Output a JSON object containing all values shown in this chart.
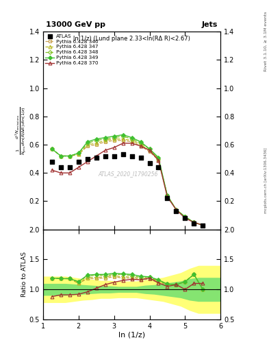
{
  "title_left": "13000 GeV pp",
  "title_right": "Jets",
  "plot_title": "ln(1/z) (Lund plane 2.33<ln(RΔ R)<2.67)",
  "ylabel_main": "$\\frac{1}{N_{\\mathrm{jets}}}\\frac{d^2 N_{\\mathrm{emissions}}}{d\\ln(R/\\Delta R)\\, d\\ln(1/z)}$",
  "ylabel_ratio": "Ratio to ATLAS",
  "xlabel": "ln (1/z)",
  "right_label_top": "Rivet 3.1.10, ≥ 3.1M events",
  "right_label_bottom": "mcplots.cern.ch [arXiv:1306.3436]",
  "watermark": "ATLAS_2020_I1790256",
  "x_atlas": [
    1.25,
    1.5,
    1.75,
    2.0,
    2.25,
    2.5,
    2.75,
    3.0,
    3.25,
    3.5,
    3.75,
    4.0,
    4.25,
    4.5,
    4.75,
    5.0,
    5.25,
    5.5
  ],
  "y_atlas": [
    0.48,
    0.44,
    0.44,
    0.48,
    0.5,
    0.51,
    0.52,
    0.52,
    0.53,
    0.52,
    0.51,
    0.47,
    0.44,
    0.22,
    0.13,
    0.08,
    0.04,
    0.03
  ],
  "x_py346": [
    1.25,
    1.5,
    1.75,
    2.0,
    2.25,
    2.5,
    2.75,
    3.0,
    3.25,
    3.5,
    3.75,
    4.0,
    4.25,
    4.5,
    4.75,
    5.0,
    5.25,
    5.5
  ],
  "y_py346": [
    0.57,
    0.52,
    0.52,
    0.53,
    0.59,
    0.6,
    0.62,
    0.63,
    0.63,
    0.62,
    0.59,
    0.55,
    0.49,
    0.24,
    0.14,
    0.09,
    0.05,
    0.03
  ],
  "x_py347": [
    1.25,
    1.5,
    1.75,
    2.0,
    2.25,
    2.5,
    2.75,
    3.0,
    3.25,
    3.5,
    3.75,
    4.0,
    4.25,
    4.5,
    4.75,
    5.0,
    5.25,
    5.5
  ],
  "y_py347": [
    0.57,
    0.52,
    0.52,
    0.53,
    0.6,
    0.61,
    0.63,
    0.64,
    0.64,
    0.63,
    0.6,
    0.56,
    0.5,
    0.24,
    0.14,
    0.09,
    0.05,
    0.03
  ],
  "x_py348": [
    1.25,
    1.5,
    1.75,
    2.0,
    2.25,
    2.5,
    2.75,
    3.0,
    3.25,
    3.5,
    3.75,
    4.0,
    4.25,
    4.5,
    4.75,
    5.0,
    5.25,
    5.5
  ],
  "y_py348": [
    0.57,
    0.52,
    0.52,
    0.54,
    0.61,
    0.63,
    0.64,
    0.65,
    0.66,
    0.64,
    0.61,
    0.57,
    0.5,
    0.24,
    0.14,
    0.09,
    0.05,
    0.03
  ],
  "x_py349": [
    1.25,
    1.5,
    1.75,
    2.0,
    2.25,
    2.5,
    2.75,
    3.0,
    3.25,
    3.5,
    3.75,
    4.0,
    4.25,
    4.5,
    4.75,
    5.0,
    5.25,
    5.5
  ],
  "y_py349": [
    0.57,
    0.52,
    0.52,
    0.54,
    0.62,
    0.64,
    0.65,
    0.66,
    0.67,
    0.65,
    0.62,
    0.57,
    0.51,
    0.24,
    0.14,
    0.09,
    0.05,
    0.03
  ],
  "x_py370": [
    1.25,
    1.5,
    1.75,
    2.0,
    2.25,
    2.5,
    2.75,
    3.0,
    3.25,
    3.5,
    3.75,
    4.0,
    4.25,
    4.5,
    4.75,
    5.0,
    5.25,
    5.5
  ],
  "y_py370": [
    0.42,
    0.4,
    0.4,
    0.44,
    0.48,
    0.52,
    0.56,
    0.58,
    0.61,
    0.61,
    0.59,
    0.56,
    0.49,
    0.23,
    0.14,
    0.08,
    0.05,
    0.03
  ],
  "ratio_346": [
    1.19,
    1.18,
    1.18,
    1.1,
    1.18,
    1.18,
    1.19,
    1.21,
    1.19,
    1.19,
    1.16,
    1.17,
    1.11,
    1.09,
    1.08,
    1.13,
    1.25,
    1.0
  ],
  "ratio_347": [
    1.19,
    1.18,
    1.18,
    1.1,
    1.2,
    1.2,
    1.21,
    1.23,
    1.21,
    1.21,
    1.18,
    1.19,
    1.14,
    1.09,
    1.08,
    1.13,
    1.25,
    1.0
  ],
  "ratio_348": [
    1.19,
    1.18,
    1.18,
    1.13,
    1.22,
    1.24,
    1.23,
    1.25,
    1.25,
    1.23,
    1.2,
    1.21,
    1.14,
    1.09,
    1.08,
    1.13,
    1.25,
    1.0
  ],
  "ratio_349": [
    1.19,
    1.18,
    1.18,
    1.13,
    1.24,
    1.25,
    1.25,
    1.27,
    1.26,
    1.25,
    1.22,
    1.21,
    1.16,
    1.09,
    1.08,
    1.13,
    1.25,
    1.0
  ],
  "ratio_370": [
    0.88,
    0.91,
    0.91,
    0.92,
    0.96,
    1.02,
    1.08,
    1.12,
    1.15,
    1.17,
    1.16,
    1.19,
    1.11,
    1.05,
    1.08,
    1.0,
    1.1,
    1.1
  ],
  "band_green_lo": [
    0.9,
    0.9,
    0.9,
    0.91,
    0.92,
    0.93,
    0.94,
    0.94,
    0.95,
    0.95,
    0.95,
    0.93,
    0.92,
    0.9,
    0.88,
    0.86,
    0.82,
    0.8
  ],
  "band_green_hi": [
    1.1,
    1.1,
    1.1,
    1.09,
    1.08,
    1.07,
    1.06,
    1.06,
    1.05,
    1.05,
    1.05,
    1.07,
    1.08,
    1.1,
    1.12,
    1.14,
    1.18,
    1.2
  ],
  "band_yellow_lo": [
    0.78,
    0.78,
    0.78,
    0.8,
    0.82,
    0.83,
    0.85,
    0.85,
    0.86,
    0.86,
    0.86,
    0.84,
    0.82,
    0.8,
    0.76,
    0.72,
    0.65,
    0.6
  ],
  "band_yellow_hi": [
    1.22,
    1.22,
    1.22,
    1.2,
    1.18,
    1.17,
    1.15,
    1.15,
    1.14,
    1.14,
    1.14,
    1.16,
    1.18,
    1.2,
    1.24,
    1.28,
    1.35,
    1.4
  ],
  "color_346": "#c8a050",
  "color_347": "#b8b820",
  "color_348": "#80c020",
  "color_349": "#40c030",
  "color_370": "#a03030",
  "color_atlas": "#000000",
  "xlim": [
    1.0,
    6.0
  ],
  "ylim_main": [
    0.0,
    1.4
  ],
  "ylim_ratio": [
    0.5,
    2.0
  ],
  "yticks_main": [
    0.2,
    0.4,
    0.6,
    0.8,
    1.0,
    1.2,
    1.4
  ],
  "yticks_ratio": [
    0.5,
    1.0,
    1.5,
    2.0
  ],
  "xticks": [
    1,
    2,
    3,
    4,
    5,
    6
  ]
}
